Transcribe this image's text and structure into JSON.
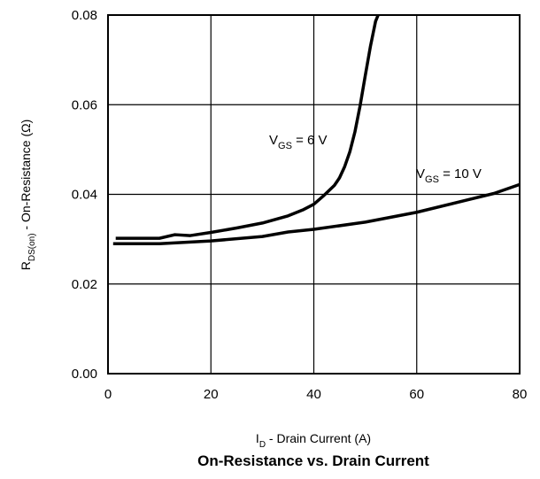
{
  "chart_data": {
    "type": "line",
    "title": "On-Resistance vs. Drain Current",
    "xlabel": {
      "main": "I",
      "sub": "D",
      "rest": " - Drain Current (A)"
    },
    "ylabel": {
      "main": "R",
      "sub": "DS(on)",
      "rest": " - On-Resistance (Ω)"
    },
    "xlim": [
      0,
      80
    ],
    "ylim": [
      0,
      0.08
    ],
    "x_ticks": [
      {
        "value": 0,
        "label": "0"
      },
      {
        "value": 20,
        "label": "20"
      },
      {
        "value": 40,
        "label": "40"
      },
      {
        "value": 60,
        "label": "60"
      },
      {
        "value": 80,
        "label": "80"
      }
    ],
    "y_ticks": [
      {
        "value": 0,
        "label": "0.00"
      },
      {
        "value": 0.02,
        "label": "0.02"
      },
      {
        "value": 0.04,
        "label": "0.04"
      },
      {
        "value": 0.06,
        "label": "0.06"
      },
      {
        "value": 0.08,
        "label": "0.08"
      }
    ],
    "grid": true,
    "series": [
      {
        "label": {
          "main": "V",
          "sub": "GS",
          "rest": " = 6 V"
        },
        "x": [
          1.5,
          4,
          8,
          10,
          13,
          16,
          20,
          25,
          30,
          35,
          38,
          40,
          42,
          44,
          45,
          46,
          47,
          48,
          49,
          50,
          51,
          52,
          52.5
        ],
        "y": [
          0.0302,
          0.0302,
          0.0302,
          0.0302,
          0.031,
          0.0308,
          0.0315,
          0.0325,
          0.0336,
          0.0352,
          0.0366,
          0.0378,
          0.0398,
          0.042,
          0.0437,
          0.0462,
          0.0495,
          0.054,
          0.0598,
          0.0665,
          0.073,
          0.0786,
          0.08
        ]
      },
      {
        "label": {
          "main": "V",
          "sub": "GS",
          "rest": " = 10 V"
        },
        "x": [
          1,
          5,
          10,
          20,
          30,
          35,
          40,
          50,
          60,
          70,
          75,
          80
        ],
        "y": [
          0.029,
          0.029,
          0.029,
          0.0296,
          0.0306,
          0.0316,
          0.0322,
          0.0338,
          0.036,
          0.0388,
          0.0402,
          0.0422
        ]
      }
    ]
  }
}
